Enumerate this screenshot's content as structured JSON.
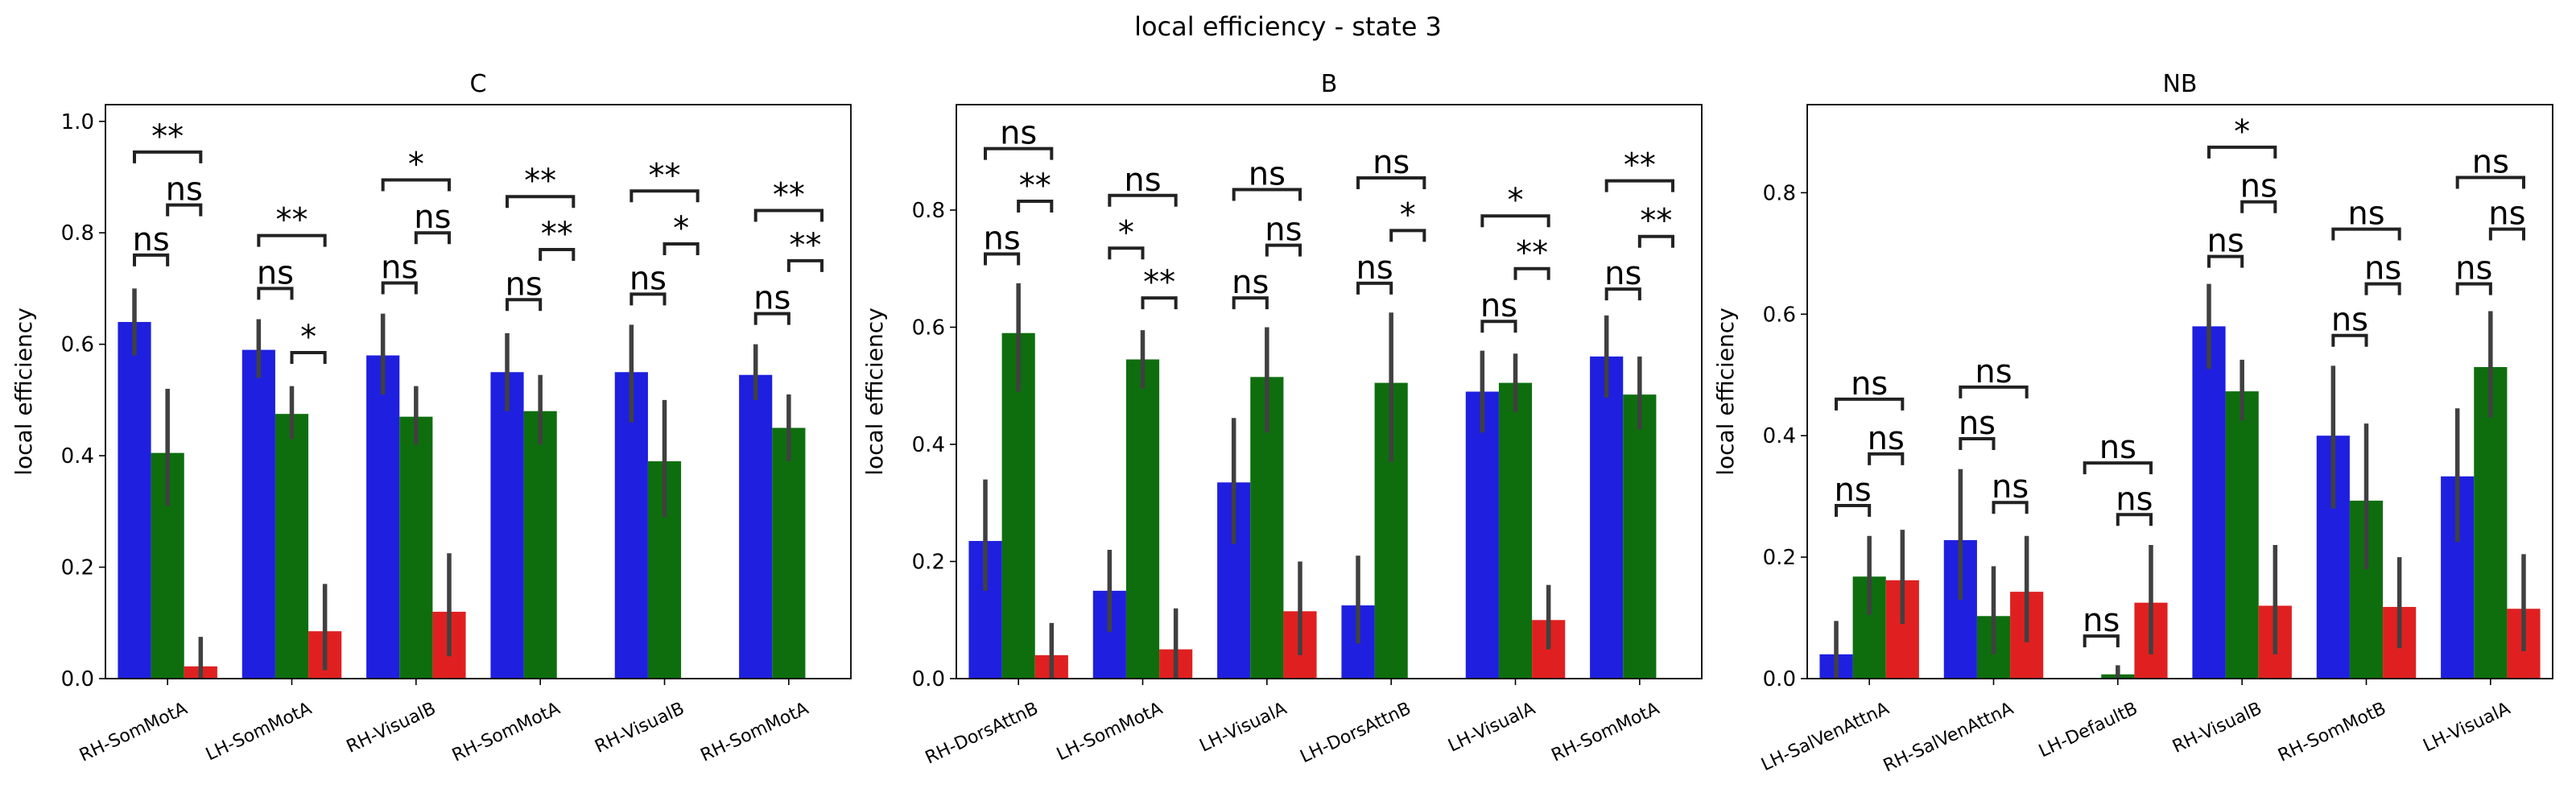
{
  "figure": {
    "suptitle": "local efficiency - state 3"
  },
  "colors": [
    "#1f1fe0",
    "#0e6e0e",
    "#e02020"
  ],
  "chart_data": [
    {
      "type": "bar",
      "title": "C",
      "ylabel": "local efficiency",
      "ylim": [
        0,
        1.03
      ],
      "yticks": [
        "0.0",
        "0.2",
        "0.4",
        "0.6",
        "0.8",
        "1.0"
      ],
      "categories": [
        "RH-SomMotA",
        "LH-SomMotA",
        "RH-VisualB",
        "RH-SomMotA",
        "RH-VisualB",
        "RH-SomMotA"
      ],
      "series": [
        {
          "values": [
            0.64,
            0.59,
            0.58,
            0.55,
            0.55,
            0.545
          ],
          "err_low": [
            0.58,
            0.54,
            0.51,
            0.48,
            0.46,
            0.5
          ],
          "err_high": [
            0.7,
            0.645,
            0.655,
            0.62,
            0.635,
            0.6
          ]
        },
        {
          "values": [
            0.405,
            0.475,
            0.47,
            0.48,
            0.39,
            0.45
          ],
          "err_low": [
            0.31,
            0.43,
            0.42,
            0.42,
            0.29,
            0.39
          ],
          "err_high": [
            0.52,
            0.525,
            0.525,
            0.545,
            0.5,
            0.51
          ]
        },
        {
          "values": [
            0.022,
            0.085,
            0.12,
            0,
            0,
            0
          ],
          "err_low": [
            0.0,
            0.015,
            0.04,
            0,
            0,
            0
          ],
          "err_high": [
            0.075,
            0.17,
            0.225,
            0,
            0,
            0
          ]
        }
      ],
      "annotations": [
        {
          "group": 0,
          "from": 0,
          "to": 1,
          "text": "ns",
          "y": 0.76
        },
        {
          "group": 0,
          "from": 1,
          "to": 2,
          "text": "ns",
          "y": 0.85
        },
        {
          "group": 0,
          "from": 0,
          "to": 2,
          "text": "**",
          "y": 0.945
        },
        {
          "group": 1,
          "from": 0,
          "to": 1,
          "text": "ns",
          "y": 0.7
        },
        {
          "group": 1,
          "from": 1,
          "to": 2,
          "text": "*",
          "y": 0.585
        },
        {
          "group": 1,
          "from": 0,
          "to": 2,
          "text": "**",
          "y": 0.795
        },
        {
          "group": 2,
          "from": 0,
          "to": 1,
          "text": "ns",
          "y": 0.71
        },
        {
          "group": 2,
          "from": 1,
          "to": 2,
          "text": "ns",
          "y": 0.8
        },
        {
          "group": 2,
          "from": 0,
          "to": 2,
          "text": "*",
          "y": 0.895
        },
        {
          "group": 3,
          "from": 0,
          "to": 1,
          "text": "ns",
          "y": 0.68
        },
        {
          "group": 3,
          "from": 1,
          "to": 2,
          "text": "**",
          "y": 0.77
        },
        {
          "group": 3,
          "from": 0,
          "to": 2,
          "text": "**",
          "y": 0.865
        },
        {
          "group": 4,
          "from": 0,
          "to": 1,
          "text": "ns",
          "y": 0.69
        },
        {
          "group": 4,
          "from": 1,
          "to": 2,
          "text": "*",
          "y": 0.78
        },
        {
          "group": 4,
          "from": 0,
          "to": 2,
          "text": "**",
          "y": 0.875
        },
        {
          "group": 5,
          "from": 0,
          "to": 1,
          "text": "ns",
          "y": 0.655
        },
        {
          "group": 5,
          "from": 1,
          "to": 2,
          "text": "**",
          "y": 0.75
        },
        {
          "group": 5,
          "from": 0,
          "to": 2,
          "text": "**",
          "y": 0.84
        }
      ]
    },
    {
      "type": "bar",
      "title": "B",
      "ylabel": "local efficiency",
      "ylim": [
        0,
        0.98
      ],
      "yticks": [
        "0.0",
        "0.2",
        "0.4",
        "0.6",
        "0.8"
      ],
      "categories": [
        "RH-DorsAttnB",
        "LH-SomMotA",
        "LH-VisualA",
        "LH-DorsAttnB",
        "LH-VisualA",
        "RH-SomMotA"
      ],
      "series": [
        {
          "values": [
            0.235,
            0.15,
            0.335,
            0.125,
            0.49,
            0.55
          ],
          "err_low": [
            0.15,
            0.08,
            0.23,
            0.06,
            0.42,
            0.48
          ],
          "err_high": [
            0.34,
            0.22,
            0.445,
            0.21,
            0.56,
            0.62
          ]
        },
        {
          "values": [
            0.59,
            0.545,
            0.515,
            0.505,
            0.505,
            0.485
          ],
          "err_low": [
            0.49,
            0.495,
            0.42,
            0.37,
            0.455,
            0.425
          ],
          "err_high": [
            0.675,
            0.595,
            0.6,
            0.625,
            0.555,
            0.55
          ]
        },
        {
          "values": [
            0.04,
            0.05,
            0.115,
            0,
            0.1,
            0
          ],
          "err_low": [
            0.0,
            0.0,
            0.04,
            0,
            0.05,
            0
          ],
          "err_high": [
            0.095,
            0.12,
            0.2,
            0,
            0.16,
            0
          ]
        }
      ],
      "annotations": [
        {
          "group": 0,
          "from": 0,
          "to": 1,
          "text": "ns",
          "y": 0.725
        },
        {
          "group": 0,
          "from": 1,
          "to": 2,
          "text": "**",
          "y": 0.815
        },
        {
          "group": 0,
          "from": 0,
          "to": 2,
          "text": "ns",
          "y": 0.905
        },
        {
          "group": 1,
          "from": 0,
          "to": 1,
          "text": "*",
          "y": 0.735
        },
        {
          "group": 1,
          "from": 1,
          "to": 2,
          "text": "**",
          "y": 0.65
        },
        {
          "group": 1,
          "from": 0,
          "to": 2,
          "text": "ns",
          "y": 0.825
        },
        {
          "group": 2,
          "from": 0,
          "to": 1,
          "text": "ns",
          "y": 0.65
        },
        {
          "group": 2,
          "from": 1,
          "to": 2,
          "text": "ns",
          "y": 0.74
        },
        {
          "group": 2,
          "from": 0,
          "to": 2,
          "text": "ns",
          "y": 0.835
        },
        {
          "group": 3,
          "from": 0,
          "to": 1,
          "text": "ns",
          "y": 0.675
        },
        {
          "group": 3,
          "from": 1,
          "to": 2,
          "text": "*",
          "y": 0.765
        },
        {
          "group": 3,
          "from": 0,
          "to": 2,
          "text": "ns",
          "y": 0.855
        },
        {
          "group": 4,
          "from": 0,
          "to": 1,
          "text": "ns",
          "y": 0.61
        },
        {
          "group": 4,
          "from": 1,
          "to": 2,
          "text": "**",
          "y": 0.7
        },
        {
          "group": 4,
          "from": 0,
          "to": 2,
          "text": "*",
          "y": 0.79
        },
        {
          "group": 5,
          "from": 0,
          "to": 1,
          "text": "ns",
          "y": 0.665
        },
        {
          "group": 5,
          "from": 1,
          "to": 2,
          "text": "**",
          "y": 0.755
        },
        {
          "group": 5,
          "from": 0,
          "to": 2,
          "text": "**",
          "y": 0.85
        }
      ]
    },
    {
      "type": "bar",
      "title": "NB",
      "ylabel": "local efficiency",
      "ylim": [
        0,
        0.945
      ],
      "yticks": [
        "0.0",
        "0.2",
        "0.4",
        "0.6",
        "0.8"
      ],
      "categories": [
        "LH-SalVenAttnA",
        "RH-SalVenAttnA",
        "LH-DefaultB",
        "RH-VisualB",
        "RH-SomMotB",
        "LH-VisualA"
      ],
      "series": [
        {
          "values": [
            0.04,
            0.228,
            0,
            0.58,
            0.4,
            0.333
          ],
          "err_low": [
            0.0,
            0.13,
            0,
            0.51,
            0.28,
            0.225
          ],
          "err_high": [
            0.095,
            0.345,
            0,
            0.65,
            0.515,
            0.445
          ]
        },
        {
          "values": [
            0.168,
            0.103,
            0.007,
            0.473,
            0.293,
            0.513
          ],
          "err_low": [
            0.105,
            0.04,
            0.0,
            0.425,
            0.18,
            0.43
          ],
          "err_high": [
            0.235,
            0.185,
            0.022,
            0.525,
            0.42,
            0.605
          ]
        },
        {
          "values": [
            0.162,
            0.143,
            0.125,
            0.12,
            0.118,
            0.115
          ],
          "err_low": [
            0.09,
            0.06,
            0.04,
            0.04,
            0.05,
            0.045
          ],
          "err_high": [
            0.245,
            0.235,
            0.22,
            0.22,
            0.2,
            0.205
          ]
        }
      ],
      "annotations": [
        {
          "group": 0,
          "from": 0,
          "to": 1,
          "text": "ns",
          "y": 0.285
        },
        {
          "group": 0,
          "from": 1,
          "to": 2,
          "text": "ns",
          "y": 0.37
        },
        {
          "group": 0,
          "from": 0,
          "to": 2,
          "text": "ns",
          "y": 0.46
        },
        {
          "group": 1,
          "from": 0,
          "to": 1,
          "text": "ns",
          "y": 0.395
        },
        {
          "group": 1,
          "from": 1,
          "to": 2,
          "text": "ns",
          "y": 0.29
        },
        {
          "group": 1,
          "from": 0,
          "to": 2,
          "text": "ns",
          "y": 0.48
        },
        {
          "group": 2,
          "from": 0,
          "to": 1,
          "text": "ns",
          "y": 0.07
        },
        {
          "group": 2,
          "from": 1,
          "to": 2,
          "text": "ns",
          "y": 0.27
        },
        {
          "group": 2,
          "from": 0,
          "to": 2,
          "text": "ns",
          "y": 0.355
        },
        {
          "group": 3,
          "from": 0,
          "to": 1,
          "text": "ns",
          "y": 0.695
        },
        {
          "group": 3,
          "from": 1,
          "to": 2,
          "text": "ns",
          "y": 0.785
        },
        {
          "group": 3,
          "from": 0,
          "to": 2,
          "text": "*",
          "y": 0.875
        },
        {
          "group": 4,
          "from": 0,
          "to": 1,
          "text": "ns",
          "y": 0.565
        },
        {
          "group": 4,
          "from": 1,
          "to": 2,
          "text": "ns",
          "y": 0.65
        },
        {
          "group": 4,
          "from": 0,
          "to": 2,
          "text": "ns",
          "y": 0.74
        },
        {
          "group": 5,
          "from": 0,
          "to": 1,
          "text": "ns",
          "y": 0.65
        },
        {
          "group": 5,
          "from": 1,
          "to": 2,
          "text": "ns",
          "y": 0.74
        },
        {
          "group": 5,
          "from": 0,
          "to": 2,
          "text": "ns",
          "y": 0.825
        }
      ]
    }
  ]
}
